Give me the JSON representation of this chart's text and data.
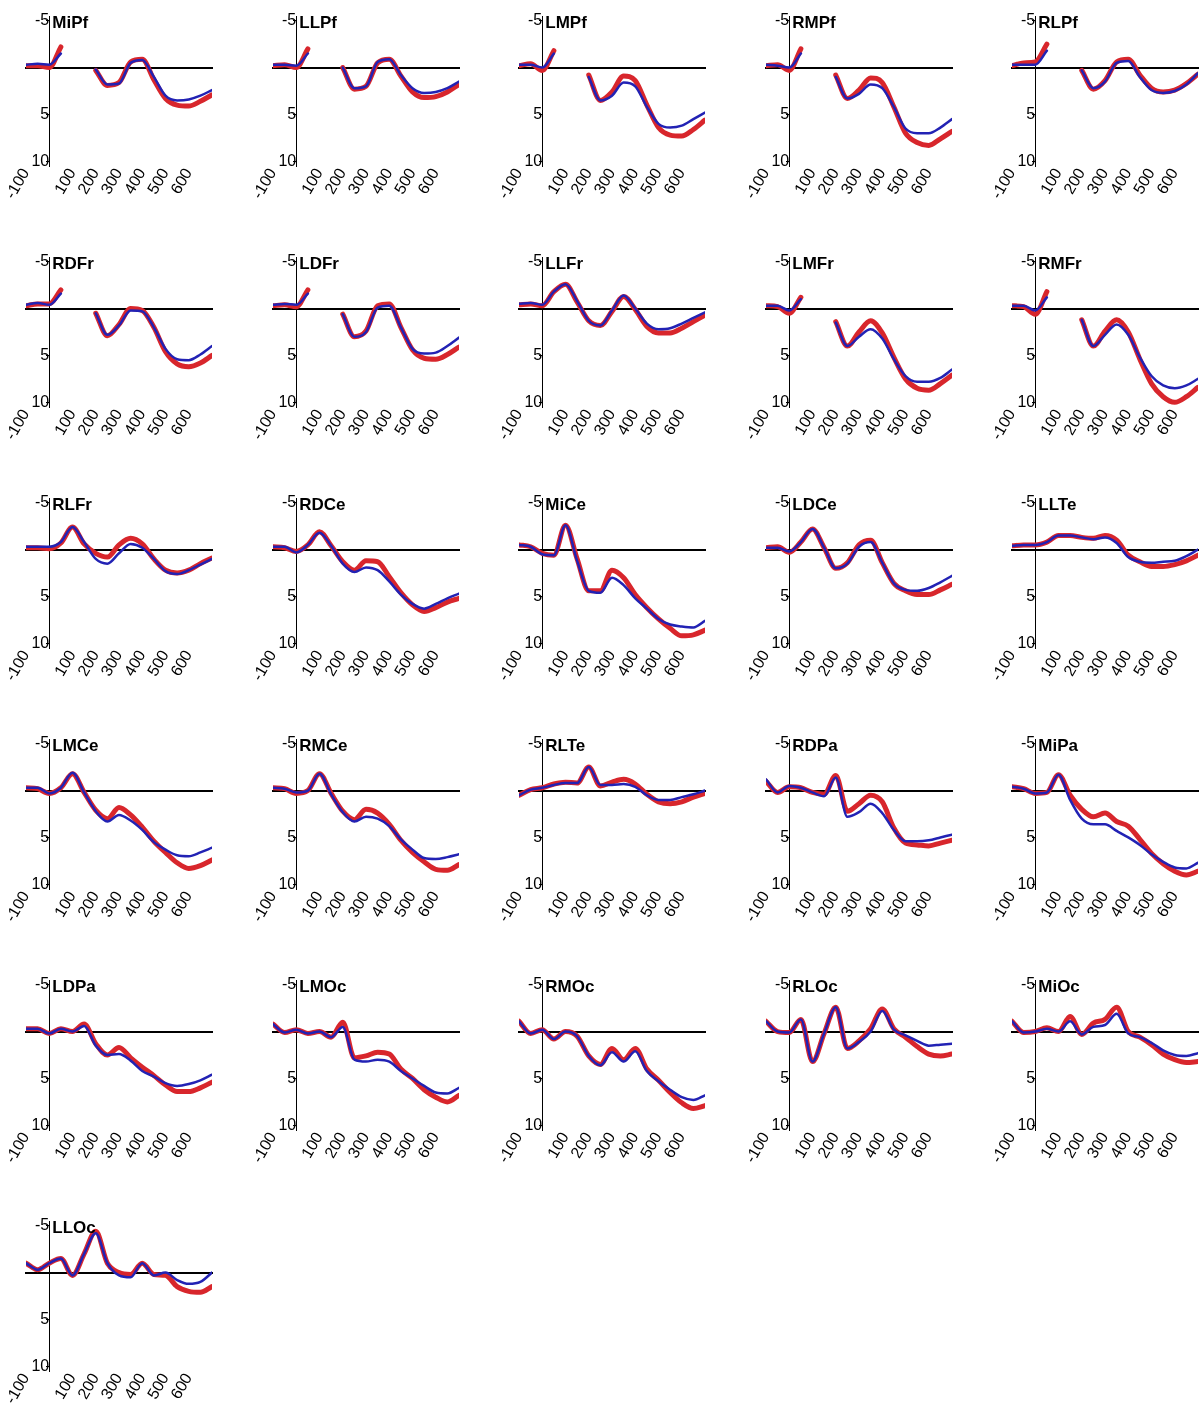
{
  "chart_data": [
    {
      "type": "line",
      "title": "MiPf",
      "x": [
        -100,
        -50,
        0,
        50,
        100,
        150,
        200,
        250,
        300,
        350,
        400,
        450,
        500,
        550,
        600,
        650,
        700
      ],
      "xlim": [
        -100,
        700
      ],
      "ylim": [
        10.5,
        -5.5
      ],
      "xticks": [
        -100,
        100,
        200,
        300,
        400,
        500,
        600
      ],
      "yticks": [
        -5,
        5,
        10
      ],
      "series": [
        {
          "color": "#d8262c",
          "values": [
            -0.2,
            -0.2,
            0,
            -2.2,
            null,
            null,
            0.3,
            1.9,
            1.6,
            -0.6,
            -0.9,
            1.3,
            3.3,
            4.0,
            4.1,
            3.6,
            2.9
          ]
        },
        {
          "color": "#2222b4",
          "values": [
            -0.3,
            -0.4,
            -0.3,
            -1.5,
            null,
            null,
            0.2,
            1.8,
            1.7,
            -0.5,
            -0.8,
            1.0,
            3.0,
            3.5,
            3.4,
            3.0,
            2.4
          ]
        }
      ]
    },
    {
      "type": "line",
      "title": "LLPf",
      "x": [
        -100,
        -50,
        0,
        50,
        100,
        150,
        200,
        250,
        300,
        350,
        400,
        450,
        500,
        550,
        600,
        650,
        700
      ],
      "xlim": [
        -100,
        700
      ],
      "ylim": [
        10.5,
        -5.5
      ],
      "xticks": [
        -100,
        100,
        200,
        300,
        400,
        500,
        600
      ],
      "yticks": [
        -5,
        5,
        10
      ],
      "series": [
        {
          "color": "#d8262c",
          "values": [
            -0.2,
            -0.3,
            0,
            -2.0,
            null,
            null,
            0.0,
            2.3,
            2.0,
            -0.5,
            -0.9,
            0.9,
            2.6,
            3.2,
            3.1,
            2.6,
            1.8
          ]
        },
        {
          "color": "#2222b4",
          "values": [
            -0.3,
            -0.3,
            -0.2,
            -1.5,
            null,
            null,
            0.0,
            2.2,
            2.0,
            -0.6,
            -0.9,
            0.8,
            2.2,
            2.7,
            2.6,
            2.2,
            1.5
          ]
        }
      ]
    },
    {
      "type": "line",
      "title": "LMPf",
      "x": [
        -100,
        -50,
        0,
        50,
        100,
        150,
        200,
        250,
        300,
        350,
        400,
        450,
        500,
        550,
        600,
        650,
        700
      ],
      "xlim": [
        -100,
        700
      ],
      "ylim": [
        10.5,
        -5.5
      ],
      "xticks": [
        -100,
        100,
        200,
        300,
        400,
        500,
        600
      ],
      "yticks": [
        -5,
        5,
        10
      ],
      "series": [
        {
          "color": "#d8262c",
          "values": [
            -0.2,
            -0.4,
            0.3,
            -1.8,
            null,
            null,
            0.8,
            3.5,
            2.6,
            0.9,
            1.4,
            4.0,
            6.4,
            7.2,
            7.3,
            6.6,
            5.6
          ]
        },
        {
          "color": "#2222b4",
          "values": [
            -0.3,
            -0.3,
            0,
            -1.5,
            null,
            null,
            1.0,
            3.5,
            3.0,
            1.6,
            2.0,
            4.2,
            6.0,
            6.4,
            6.2,
            5.5,
            4.8
          ]
        }
      ]
    },
    {
      "type": "line",
      "title": "RMPf",
      "x": [
        -100,
        -50,
        0,
        50,
        100,
        150,
        200,
        250,
        300,
        350,
        400,
        450,
        500,
        550,
        600,
        650,
        700
      ],
      "xlim": [
        -100,
        700
      ],
      "ylim": [
        10.5,
        -5.5
      ],
      "xticks": [
        -100,
        100,
        200,
        300,
        400,
        500,
        600
      ],
      "yticks": [
        -5,
        5,
        10
      ],
      "series": [
        {
          "color": "#d8262c",
          "values": [
            -0.2,
            -0.3,
            0.3,
            -2.0,
            null,
            null,
            0.8,
            3.3,
            2.4,
            1.1,
            1.6,
            4.2,
            7.0,
            8.0,
            8.3,
            7.6,
            6.8
          ]
        },
        {
          "color": "#2222b4",
          "values": [
            -0.3,
            -0.2,
            0,
            -1.5,
            null,
            null,
            1.0,
            3.3,
            2.8,
            1.8,
            2.2,
            4.2,
            6.5,
            7.0,
            7.0,
            6.4,
            5.5
          ]
        }
      ]
    },
    {
      "type": "line",
      "title": "RLPf",
      "x": [
        -100,
        -50,
        0,
        50,
        100,
        150,
        200,
        250,
        300,
        350,
        400,
        450,
        500,
        550,
        600,
        650,
        700
      ],
      "xlim": [
        -100,
        700
      ],
      "ylim": [
        10.5,
        -5.5
      ],
      "xticks": [
        -100,
        100,
        200,
        300,
        400,
        500,
        600
      ],
      "yticks": [
        -5,
        5,
        10
      ],
      "series": [
        {
          "color": "#d8262c",
          "values": [
            -0.2,
            -0.5,
            -0.6,
            -2.5,
            null,
            null,
            0.3,
            2.3,
            1.4,
            -0.6,
            -0.9,
            0.8,
            2.2,
            2.6,
            2.4,
            1.7,
            0.7
          ]
        },
        {
          "color": "#2222b4",
          "values": [
            -0.3,
            -0.3,
            -0.3,
            -1.8,
            null,
            null,
            0.3,
            2.2,
            1.5,
            -0.5,
            -0.7,
            1.0,
            2.4,
            2.7,
            2.5,
            1.8,
            0.6
          ]
        }
      ]
    },
    {
      "type": "line",
      "title": "RDFr",
      "x": [
        -100,
        -50,
        0,
        50,
        100,
        150,
        200,
        250,
        300,
        350,
        400,
        450,
        500,
        550,
        600,
        650,
        700
      ],
      "xlim": [
        -100,
        700
      ],
      "ylim": [
        10.5,
        -5.5
      ],
      "xticks": [
        -100,
        100,
        200,
        300,
        400,
        500,
        600
      ],
      "yticks": [
        -5,
        5,
        10
      ],
      "series": [
        {
          "color": "#d8262c",
          "values": [
            -0.3,
            -0.5,
            -0.5,
            -2.0,
            null,
            null,
            0.5,
            2.9,
            1.7,
            0.0,
            0.2,
            2.0,
            4.6,
            5.9,
            6.2,
            5.8,
            5.0
          ]
        },
        {
          "color": "#2222b4",
          "values": [
            -0.4,
            -0.6,
            -0.4,
            -1.6,
            null,
            null,
            0.5,
            2.8,
            1.8,
            0.2,
            0.3,
            2.0,
            4.3,
            5.4,
            5.5,
            4.9,
            4.0
          ]
        }
      ]
    },
    {
      "type": "line",
      "title": "LDFr",
      "x": [
        -100,
        -50,
        0,
        50,
        100,
        150,
        200,
        250,
        300,
        350,
        400,
        450,
        500,
        550,
        600,
        650,
        700
      ],
      "xlim": [
        -100,
        700
      ],
      "ylim": [
        10.5,
        -5.5
      ],
      "xticks": [
        -100,
        100,
        200,
        300,
        400,
        500,
        600
      ],
      "yticks": [
        -5,
        5,
        10
      ],
      "series": [
        {
          "color": "#d8262c",
          "values": [
            -0.3,
            -0.4,
            -0.2,
            -2.0,
            null,
            null,
            0.6,
            3.0,
            2.4,
            -0.3,
            -0.5,
            2.0,
            4.4,
            5.3,
            5.4,
            4.9,
            4.1
          ]
        },
        {
          "color": "#2222b4",
          "values": [
            -0.4,
            -0.5,
            -0.4,
            -1.6,
            null,
            null,
            0.6,
            3.0,
            2.5,
            -0.1,
            -0.3,
            2.0,
            4.3,
            4.8,
            4.7,
            4.0,
            3.1
          ]
        }
      ]
    },
    {
      "type": "line",
      "title": "LLFr",
      "x": [
        -100,
        -50,
        0,
        50,
        100,
        150,
        200,
        250,
        300,
        350,
        400,
        450,
        500,
        550,
        600,
        650,
        700
      ],
      "xlim": [
        -100,
        700
      ],
      "ylim": [
        10.5,
        -5.5
      ],
      "xticks": [
        -100,
        100,
        200,
        300,
        400,
        500,
        600
      ],
      "yticks": [
        -5,
        5,
        10
      ],
      "series": [
        {
          "color": "#d8262c",
          "values": [
            -0.4,
            -0.5,
            -0.3,
            -1.8,
            -2.6,
            -0.7,
            1.3,
            1.8,
            0.3,
            -1.3,
            0.1,
            1.9,
            2.6,
            2.6,
            2.1,
            1.4,
            0.7
          ]
        },
        {
          "color": "#2222b4",
          "values": [
            -0.5,
            -0.6,
            -0.4,
            -1.8,
            -2.6,
            -0.8,
            1.3,
            1.8,
            0.2,
            -1.4,
            0.0,
            1.6,
            2.2,
            2.1,
            1.6,
            1.0,
            0.4
          ]
        }
      ]
    },
    {
      "type": "line",
      "title": "LMFr",
      "x": [
        -100,
        -50,
        0,
        50,
        100,
        150,
        200,
        250,
        300,
        350,
        400,
        450,
        500,
        550,
        600,
        650,
        700
      ],
      "xlim": [
        -100,
        700
      ],
      "ylim": [
        10.5,
        -5.5
      ],
      "xticks": [
        -100,
        100,
        200,
        300,
        400,
        500,
        600
      ],
      "yticks": [
        -5,
        5,
        10
      ],
      "series": [
        {
          "color": "#d8262c",
          "values": [
            -0.3,
            -0.2,
            0.5,
            -1.2,
            null,
            null,
            1.4,
            4.0,
            2.5,
            1.3,
            2.6,
            5.2,
            7.5,
            8.5,
            8.7,
            8.0,
            7.1
          ]
        },
        {
          "color": "#2222b4",
          "values": [
            -0.3,
            -0.3,
            0.2,
            -1.0,
            null,
            null,
            1.5,
            4.0,
            3.0,
            2.2,
            3.2,
            5.4,
            7.2,
            7.8,
            7.8,
            7.4,
            6.5
          ]
        }
      ]
    },
    {
      "type": "line",
      "title": "RMFr",
      "x": [
        -100,
        -50,
        0,
        50,
        100,
        150,
        200,
        250,
        300,
        350,
        400,
        450,
        500,
        550,
        600,
        650,
        700
      ],
      "xlim": [
        -100,
        700
      ],
      "ylim": [
        10.5,
        -5.5
      ],
      "xticks": [
        -100,
        100,
        200,
        300,
        400,
        500,
        600
      ],
      "yticks": [
        -5,
        5,
        10
      ],
      "series": [
        {
          "color": "#d8262c",
          "values": [
            -0.3,
            -0.2,
            0.6,
            -1.8,
            null,
            null,
            1.2,
            4.0,
            2.4,
            1.2,
            2.5,
            5.4,
            8.0,
            9.4,
            10.0,
            9.4,
            8.4
          ]
        },
        {
          "color": "#2222b4",
          "values": [
            -0.3,
            -0.3,
            0.2,
            -1.2,
            null,
            null,
            1.2,
            4.0,
            2.8,
            1.7,
            2.8,
            5.2,
            7.2,
            8.2,
            8.5,
            8.2,
            7.5
          ]
        }
      ]
    },
    {
      "type": "line",
      "title": "RLFr",
      "x": [
        -100,
        -50,
        0,
        50,
        100,
        150,
        200,
        250,
        300,
        350,
        400,
        450,
        500,
        550,
        600,
        650,
        700
      ],
      "xlim": [
        -100,
        700
      ],
      "ylim": [
        10.5,
        -5.5
      ],
      "xticks": [
        -100,
        100,
        200,
        300,
        400,
        500,
        600
      ],
      "yticks": [
        -5,
        5,
        10
      ],
      "series": [
        {
          "color": "#d8262c",
          "values": [
            -0.2,
            -0.2,
            -0.1,
            -0.7,
            -2.4,
            -0.6,
            0.4,
            0.8,
            -0.5,
            -1.2,
            -0.6,
            1.0,
            2.2,
            2.5,
            2.2,
            1.5,
            0.9
          ]
        },
        {
          "color": "#2222b4",
          "values": [
            -0.3,
            -0.3,
            -0.3,
            -0.8,
            -2.4,
            -0.8,
            1.0,
            1.5,
            0.4,
            -0.6,
            -0.2,
            1.0,
            2.3,
            2.6,
            2.2,
            1.6,
            1.0
          ]
        }
      ]
    },
    {
      "type": "line",
      "title": "RDCe",
      "x": [
        -100,
        -50,
        0,
        50,
        100,
        150,
        200,
        250,
        300,
        350,
        400,
        450,
        500,
        550,
        600,
        650,
        700
      ],
      "xlim": [
        -100,
        700
      ],
      "ylim": [
        10.5,
        -5.5
      ],
      "xticks": [
        -100,
        100,
        200,
        300,
        400,
        500,
        600
      ],
      "yticks": [
        -5,
        5,
        10
      ],
      "series": [
        {
          "color": "#d8262c",
          "values": [
            -0.3,
            -0.2,
            0.2,
            -0.5,
            -1.9,
            -0.4,
            1.3,
            2.2,
            1.2,
            1.3,
            2.9,
            4.6,
            5.9,
            6.6,
            6.2,
            5.6,
            5.2
          ]
        },
        {
          "color": "#2222b4",
          "values": [
            -0.3,
            -0.3,
            0.3,
            -0.5,
            -1.8,
            -0.4,
            1.5,
            2.4,
            1.9,
            2.2,
            3.4,
            4.8,
            5.8,
            6.3,
            5.8,
            5.2,
            4.7
          ]
        }
      ]
    },
    {
      "type": "line",
      "title": "MiCe",
      "x": [
        -100,
        -50,
        0,
        50,
        100,
        150,
        200,
        250,
        300,
        350,
        400,
        450,
        500,
        550,
        600,
        650,
        700
      ],
      "xlim": [
        -100,
        700
      ],
      "ylim": [
        10.5,
        -5.5
      ],
      "xticks": [
        -100,
        100,
        200,
        300,
        400,
        500,
        600
      ],
      "yticks": [
        -5,
        5,
        10
      ],
      "series": [
        {
          "color": "#d8262c",
          "values": [
            -0.5,
            -0.3,
            0.4,
            0.6,
            -2.6,
            1.0,
            4.4,
            4.4,
            2.2,
            3.0,
            4.8,
            6.2,
            7.4,
            8.4,
            9.2,
            9.1,
            8.6
          ]
        },
        {
          "color": "#2222b4",
          "values": [
            -0.5,
            -0.3,
            0.5,
            0.6,
            -2.6,
            1.2,
            4.4,
            4.6,
            3.0,
            3.8,
            5.2,
            6.3,
            7.4,
            8.0,
            8.2,
            8.3,
            7.6
          ]
        }
      ]
    },
    {
      "type": "line",
      "title": "LDCe",
      "x": [
        -100,
        -50,
        0,
        50,
        100,
        150,
        200,
        250,
        300,
        350,
        400,
        450,
        500,
        550,
        600,
        650,
        700
      ],
      "xlim": [
        -100,
        700
      ],
      "ylim": [
        10.5,
        -5.5
      ],
      "xticks": [
        -100,
        100,
        200,
        300,
        400,
        500,
        600
      ],
      "yticks": [
        -5,
        5,
        10
      ],
      "series": [
        {
          "color": "#d8262c",
          "values": [
            -0.2,
            -0.3,
            0.3,
            -0.8,
            -2.2,
            -0.2,
            2.0,
            1.4,
            -0.5,
            -1.0,
            1.4,
            3.6,
            4.4,
            4.8,
            4.8,
            4.3,
            3.7
          ]
        },
        {
          "color": "#2222b4",
          "values": [
            -0.2,
            -0.2,
            0.2,
            -0.8,
            -2.2,
            -0.2,
            2.0,
            1.5,
            -0.3,
            -0.8,
            1.4,
            3.6,
            4.3,
            4.4,
            4.1,
            3.5,
            2.8
          ]
        }
      ]
    },
    {
      "type": "line",
      "title": "LLTe",
      "x": [
        -100,
        -50,
        0,
        50,
        100,
        150,
        200,
        250,
        300,
        350,
        400,
        450,
        500,
        550,
        600,
        650,
        700
      ],
      "xlim": [
        -100,
        700
      ],
      "ylim": [
        10.5,
        -5.5
      ],
      "xticks": [
        -100,
        100,
        200,
        300,
        400,
        500,
        600
      ],
      "yticks": [
        -5,
        5,
        10
      ],
      "series": [
        {
          "color": "#d8262c",
          "values": [
            -0.4,
            -0.5,
            -0.5,
            -0.8,
            -1.5,
            -1.5,
            -1.3,
            -1.2,
            -1.5,
            -1.0,
            0.6,
            1.3,
            1.8,
            1.8,
            1.6,
            1.2,
            0.6
          ]
        },
        {
          "color": "#2222b4",
          "values": [
            -0.4,
            -0.5,
            -0.5,
            -0.8,
            -1.5,
            -1.5,
            -1.3,
            -1.1,
            -1.3,
            -0.7,
            0.8,
            1.3,
            1.4,
            1.3,
            1.2,
            0.7,
            0.0
          ]
        }
      ]
    },
    {
      "type": "line",
      "title": "LMCe",
      "x": [
        -100,
        -50,
        0,
        50,
        100,
        150,
        200,
        250,
        300,
        350,
        400,
        450,
        500,
        550,
        600,
        650,
        700
      ],
      "xlim": [
        -100,
        700
      ],
      "ylim": [
        10.5,
        -5.5
      ],
      "xticks": [
        -100,
        100,
        200,
        300,
        400,
        500,
        600
      ],
      "yticks": [
        -5,
        5,
        10
      ],
      "series": [
        {
          "color": "#d8262c",
          "values": [
            -0.3,
            -0.2,
            0.3,
            -0.3,
            -1.8,
            0.2,
            2.1,
            3.0,
            1.8,
            2.6,
            3.9,
            5.4,
            6.6,
            7.7,
            8.3,
            8.0,
            7.4
          ]
        },
        {
          "color": "#2222b4",
          "values": [
            -0.3,
            -0.3,
            0.3,
            -0.3,
            -1.9,
            0.2,
            2.2,
            3.3,
            2.6,
            3.2,
            4.2,
            5.5,
            6.3,
            6.9,
            7.0,
            6.6,
            6.1
          ]
        }
      ]
    },
    {
      "type": "line",
      "title": "RMCe",
      "x": [
        -100,
        -50,
        0,
        50,
        100,
        150,
        200,
        250,
        300,
        350,
        400,
        450,
        500,
        550,
        600,
        650,
        700
      ],
      "xlim": [
        -100,
        700
      ],
      "ylim": [
        10.5,
        -5.5
      ],
      "xticks": [
        -100,
        100,
        200,
        300,
        400,
        500,
        600
      ],
      "yticks": [
        -5,
        5,
        10
      ],
      "series": [
        {
          "color": "#d8262c",
          "values": [
            -0.3,
            -0.2,
            0.3,
            0.0,
            -1.8,
            0.3,
            2.2,
            3.1,
            2.0,
            2.4,
            3.6,
            5.3,
            6.6,
            7.6,
            8.4,
            8.5,
            7.9
          ]
        },
        {
          "color": "#2222b4",
          "values": [
            -0.3,
            -0.2,
            0.2,
            0.0,
            -1.8,
            0.4,
            2.3,
            3.3,
            2.8,
            3.0,
            3.8,
            5.2,
            6.3,
            7.2,
            7.3,
            7.1,
            6.8
          ]
        }
      ]
    },
    {
      "type": "line",
      "title": "RLTe",
      "x": [
        -100,
        -50,
        0,
        50,
        100,
        150,
        200,
        250,
        300,
        350,
        400,
        450,
        500,
        550,
        600,
        650,
        700
      ],
      "xlim": [
        -100,
        700
      ],
      "ylim": [
        10.5,
        -5.5
      ],
      "xticks": [
        -100,
        100,
        200,
        300,
        400,
        500,
        600
      ],
      "yticks": [
        -5,
        5,
        10
      ],
      "series": [
        {
          "color": "#d8262c",
          "values": [
            0.5,
            -0.1,
            -0.3,
            -0.7,
            -0.9,
            -0.8,
            -2.5,
            -0.5,
            -0.9,
            -1.2,
            -0.7,
            0.4,
            1.2,
            1.4,
            1.2,
            0.7,
            0.3
          ]
        },
        {
          "color": "#2222b4",
          "values": [
            0.5,
            -0.1,
            -0.3,
            -0.6,
            -0.8,
            -0.8,
            -2.5,
            -0.6,
            -0.6,
            -0.7,
            -0.4,
            0.5,
            1.0,
            1.0,
            0.7,
            0.4,
            0.0
          ]
        }
      ]
    },
    {
      "type": "line",
      "title": "RDPa",
      "x": [
        -100,
        -50,
        0,
        50,
        100,
        150,
        200,
        250,
        300,
        350,
        400,
        450,
        500,
        550,
        600,
        650,
        700
      ],
      "xlim": [
        -100,
        700
      ],
      "ylim": [
        10.5,
        -5.5
      ],
      "xticks": [
        -100,
        100,
        200,
        300,
        400,
        500,
        600
      ],
      "yticks": [
        -5,
        5,
        10
      ],
      "series": [
        {
          "color": "#d8262c",
          "values": [
            -1.0,
            0.2,
            -0.4,
            -0.3,
            0.2,
            0.4,
            -1.6,
            2.2,
            1.4,
            0.5,
            1.2,
            4.0,
            5.6,
            5.8,
            5.9,
            5.6,
            5.3
          ]
        },
        {
          "color": "#2222b4",
          "values": [
            -1.2,
            0.2,
            -0.5,
            -0.3,
            0.2,
            0.6,
            -1.4,
            2.8,
            2.3,
            1.4,
            2.4,
            4.2,
            5.4,
            5.4,
            5.3,
            5.0,
            4.7
          ]
        }
      ]
    },
    {
      "type": "line",
      "title": "MiPa",
      "x": [
        -100,
        -50,
        0,
        50,
        100,
        150,
        200,
        250,
        300,
        350,
        400,
        450,
        500,
        550,
        600,
        650,
        700
      ],
      "xlim": [
        -100,
        700
      ],
      "ylim": [
        10.5,
        -5.5
      ],
      "xticks": [
        -100,
        100,
        200,
        300,
        400,
        500,
        600
      ],
      "yticks": [
        -5,
        5,
        10
      ],
      "series": [
        {
          "color": "#d8262c",
          "values": [
            -0.4,
            -0.2,
            0.3,
            0.2,
            -1.7,
            0.5,
            2.0,
            2.8,
            2.4,
            3.3,
            3.8,
            5.2,
            6.7,
            7.8,
            8.6,
            9.0,
            8.6
          ]
        },
        {
          "color": "#2222b4",
          "values": [
            -0.4,
            -0.2,
            0.3,
            0.2,
            -1.7,
            1.0,
            3.0,
            3.6,
            3.6,
            4.3,
            5.0,
            5.8,
            6.8,
            7.6,
            8.2,
            8.3,
            7.7
          ]
        }
      ]
    },
    {
      "type": "line",
      "title": "LDPa",
      "x": [
        -100,
        -50,
        0,
        50,
        100,
        150,
        200,
        250,
        300,
        350,
        400,
        450,
        500,
        550,
        600,
        650,
        700
      ],
      "xlim": [
        -100,
        700
      ],
      "ylim": [
        10.5,
        -5.5
      ],
      "xticks": [
        -100,
        100,
        200,
        300,
        400,
        500,
        600
      ],
      "yticks": [
        -5,
        5,
        10
      ],
      "series": [
        {
          "color": "#d8262c",
          "values": [
            -0.3,
            -0.3,
            0.2,
            -0.3,
            0.0,
            -0.8,
            1.3,
            2.5,
            1.7,
            2.8,
            3.8,
            4.7,
            5.7,
            6.4,
            6.4,
            6.0,
            5.4
          ]
        },
        {
          "color": "#2222b4",
          "values": [
            -0.3,
            -0.3,
            0.2,
            -0.3,
            0.0,
            -0.6,
            1.5,
            2.5,
            2.4,
            3.1,
            4.2,
            4.8,
            5.5,
            5.8,
            5.6,
            5.2,
            4.6
          ]
        }
      ]
    },
    {
      "type": "line",
      "title": "LMOc",
      "x": [
        -100,
        -50,
        0,
        50,
        100,
        150,
        200,
        250,
        300,
        350,
        400,
        450,
        500,
        550,
        600,
        650,
        700
      ],
      "xlim": [
        -100,
        700
      ],
      "ylim": [
        10.5,
        -5.5
      ],
      "xticks": [
        -100,
        100,
        200,
        300,
        400,
        500,
        600
      ],
      "yticks": [
        -5,
        5,
        10
      ],
      "series": [
        {
          "color": "#d8262c",
          "values": [
            -0.8,
            0.1,
            -0.2,
            0.2,
            0.0,
            0.6,
            -1.0,
            2.8,
            2.6,
            2.2,
            2.4,
            4.0,
            5.0,
            6.2,
            7.0,
            7.5,
            6.8
          ]
        },
        {
          "color": "#2222b4",
          "values": [
            -0.8,
            0.1,
            -0.2,
            0.2,
            0.0,
            0.6,
            -0.5,
            3.0,
            3.2,
            3.0,
            3.2,
            4.2,
            5.0,
            5.8,
            6.5,
            6.6,
            6.0
          ]
        }
      ]
    },
    {
      "type": "line",
      "title": "RMOc",
      "x": [
        -100,
        -50,
        0,
        50,
        100,
        150,
        200,
        250,
        300,
        350,
        400,
        450,
        500,
        550,
        600,
        650,
        700
      ],
      "xlim": [
        -100,
        700
      ],
      "ylim": [
        10.5,
        -5.5
      ],
      "xticks": [
        -100,
        100,
        200,
        300,
        400,
        500,
        600
      ],
      "yticks": [
        -5,
        5,
        10
      ],
      "series": [
        {
          "color": "#d8262c",
          "values": [
            -1.1,
            0.2,
            -0.2,
            0.8,
            0.0,
            0.5,
            2.6,
            3.5,
            1.8,
            3.0,
            1.8,
            4.0,
            5.2,
            6.5,
            7.6,
            8.2,
            7.9
          ]
        },
        {
          "color": "#2222b4",
          "values": [
            -1.1,
            0.2,
            -0.2,
            0.8,
            0.0,
            0.5,
            2.6,
            3.6,
            2.2,
            3.2,
            2.1,
            4.2,
            5.3,
            6.2,
            7.0,
            7.3,
            6.8
          ]
        }
      ]
    },
    {
      "type": "line",
      "title": "RLOc",
      "x": [
        -100,
        -50,
        0,
        50,
        100,
        150,
        200,
        250,
        300,
        350,
        400,
        450,
        500,
        550,
        600,
        650,
        700
      ],
      "xlim": [
        -100,
        700
      ],
      "ylim": [
        10.5,
        -5.5
      ],
      "xticks": [
        -100,
        100,
        200,
        300,
        400,
        500,
        600
      ],
      "yticks": [
        -5,
        5,
        10
      ],
      "series": [
        {
          "color": "#d8262c",
          "values": [
            -1.1,
            0.0,
            0.1,
            -1.3,
            3.2,
            0.2,
            -2.6,
            1.8,
            1.0,
            -0.3,
            -2.4,
            -0.3,
            0.6,
            1.6,
            2.4,
            2.6,
            2.4
          ]
        },
        {
          "color": "#2222b4",
          "values": [
            -1.1,
            0.0,
            0.1,
            -1.3,
            3.2,
            0.2,
            -2.6,
            1.8,
            1.1,
            0.0,
            -2.2,
            -0.2,
            0.4,
            1.0,
            1.5,
            1.4,
            1.3
          ]
        }
      ]
    },
    {
      "type": "line",
      "title": "MiOc",
      "x": [
        -100,
        -50,
        0,
        50,
        100,
        150,
        200,
        250,
        300,
        350,
        400,
        450,
        500,
        550,
        600,
        650,
        700
      ],
      "xlim": [
        -100,
        700
      ],
      "ylim": [
        10.5,
        -5.5
      ],
      "xticks": [
        -100,
        100,
        200,
        300,
        400,
        500,
        600
      ],
      "yticks": [
        -5,
        5,
        10
      ],
      "series": [
        {
          "color": "#d8262c",
          "values": [
            -1.1,
            0.1,
            0.0,
            -0.4,
            0.0,
            -1.6,
            0.3,
            -0.9,
            -1.3,
            -2.6,
            0.0,
            0.6,
            1.4,
            2.4,
            3.0,
            3.3,
            3.2
          ]
        },
        {
          "color": "#2222b4",
          "values": [
            -1.1,
            0.1,
            0.0,
            -0.3,
            0.0,
            -1.1,
            0.3,
            -0.5,
            -0.7,
            -1.9,
            0.2,
            0.6,
            1.2,
            2.0,
            2.5,
            2.6,
            2.3
          ]
        }
      ]
    },
    {
      "type": "line",
      "title": "LLOc",
      "x": [
        -100,
        -50,
        0,
        50,
        100,
        150,
        200,
        250,
        300,
        350,
        400,
        450,
        500,
        550,
        600,
        650,
        700
      ],
      "xlim": [
        -100,
        700
      ],
      "ylim": [
        10.5,
        -5.5
      ],
      "xticks": [
        -100,
        100,
        200,
        300,
        400,
        500,
        600
      ],
      "yticks": [
        -5,
        5,
        10
      ],
      "series": [
        {
          "color": "#d8262c",
          "values": [
            -1.0,
            -0.3,
            -1.0,
            -1.5,
            0.3,
            -2.0,
            -4.4,
            -1.0,
            0.0,
            0.2,
            -1.0,
            0.2,
            0.3,
            1.5,
            2.0,
            2.1,
            1.5
          ]
        },
        {
          "color": "#2222b4",
          "values": [
            -1.0,
            -0.3,
            -1.0,
            -1.5,
            0.3,
            -2.0,
            -4.2,
            -1.0,
            0.3,
            0.5,
            -1.0,
            0.3,
            0.0,
            0.8,
            1.2,
            1.0,
            0.0
          ]
        }
      ]
    }
  ]
}
